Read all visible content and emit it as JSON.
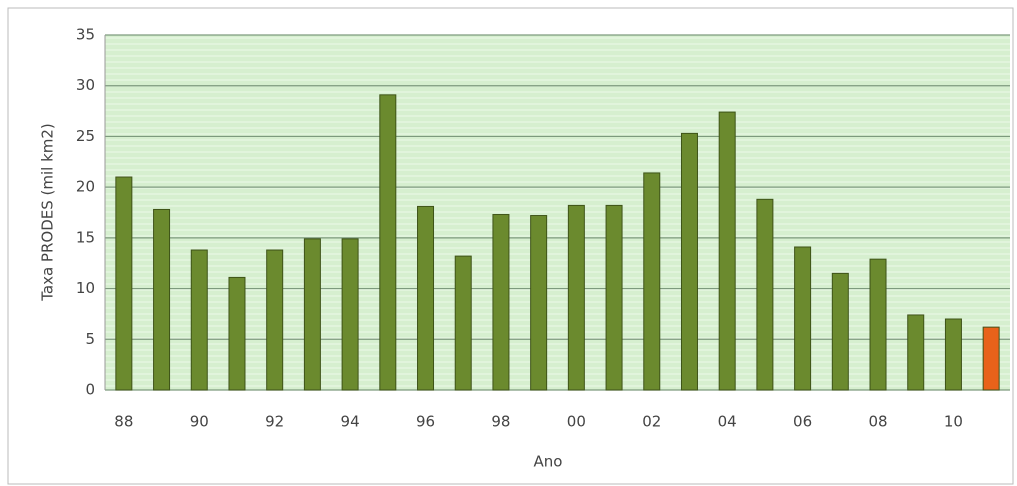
{
  "chart_data": {
    "type": "bar",
    "x_label": "Ano",
    "y_label": "Taxa PRODES (mil km2)",
    "categories": [
      "88",
      null,
      "90",
      null,
      "92",
      null,
      "94",
      null,
      "96",
      null,
      "98",
      null,
      "00",
      null,
      "02",
      null,
      "04",
      null,
      "06",
      null,
      "08",
      null,
      "10",
      null
    ],
    "values": [
      21.0,
      17.8,
      13.8,
      11.1,
      13.8,
      14.9,
      14.9,
      29.1,
      18.1,
      13.2,
      17.3,
      17.2,
      18.2,
      18.2,
      21.4,
      25.3,
      27.4,
      18.8,
      14.1,
      11.5,
      12.9,
      7.4,
      7.0,
      6.2
    ],
    "colors": [
      "#6b8a2e",
      "#6b8a2e",
      "#6b8a2e",
      "#6b8a2e",
      "#6b8a2e",
      "#6b8a2e",
      "#6b8a2e",
      "#6b8a2e",
      "#6b8a2e",
      "#6b8a2e",
      "#6b8a2e",
      "#6b8a2e",
      "#6b8a2e",
      "#6b8a2e",
      "#6b8a2e",
      "#6b8a2e",
      "#6b8a2e",
      "#6b8a2e",
      "#6b8a2e",
      "#6b8a2e",
      "#6b8a2e",
      "#6b8a2e",
      "#6b8a2e",
      "#e8621a"
    ],
    "ylim": [
      0,
      35
    ],
    "yticks": [
      0,
      5,
      10,
      15,
      20,
      25,
      30,
      35
    ],
    "grid": true
  }
}
